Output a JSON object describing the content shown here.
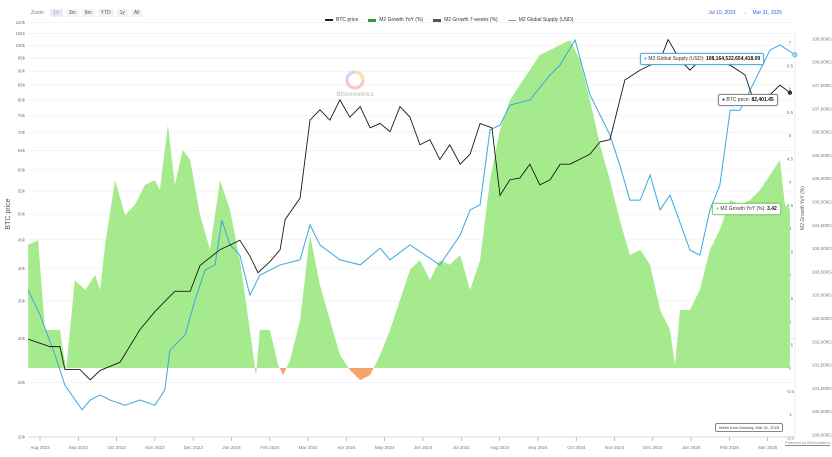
{
  "toolbar": {
    "zoom_label": "Zoom",
    "buttons": [
      "1m",
      "3m",
      "6m",
      "YTD",
      "1y",
      "All"
    ]
  },
  "range": {
    "from": "Jul 10, 2023",
    "arrow": "→",
    "to": "Mar 31, 2025"
  },
  "legend": [
    {
      "label": "BTC price",
      "color": "#222222"
    },
    {
      "label": "M2 Growth YoY (%)",
      "color": "#2e9e2e"
    },
    {
      "label": "M2 Growth 7-weeks (%)",
      "color": "#555555"
    },
    {
      "label": "M2 Global Supply (USD)",
      "color": "#4db3e6"
    }
  ],
  "watermark": "BGeometrics",
  "tooltips": {
    "m2_supply": {
      "label": "M2 Global Supply (USD):",
      "value": "108,164,522,654,418.09"
    },
    "btc": {
      "label": "BTC price:",
      "value": "82,401.45"
    },
    "growth": {
      "label": "M2 Growth YoY (%):",
      "value": "3.42"
    }
  },
  "powered": "Powered by BGeometrics",
  "week_tooltip": "Week from Monday, Mar 31, 2025",
  "colors": {
    "btc": "#1a1a1a",
    "m2": "#3aa8e0",
    "growth_pos": "#a6ea8e",
    "growth_neg": "#f4a36c"
  },
  "chart_data": {
    "type": "line",
    "title": "",
    "x_unit": "months since Aug 2023",
    "xticks": [
      "Aug 2023",
      "Sep 2023",
      "Oct 2023",
      "Nov 2023",
      "Dec 2023",
      "Jan 2024",
      "Feb 2024",
      "Mar 2024",
      "Apr 2024",
      "May 2024",
      "Jun 2024",
      "Jul 2024",
      "Aug 2024",
      "Sep 2024",
      "Oct 2024",
      "Nov 2024",
      "Dec 2024",
      "Jan 2025",
      "Feb 2025",
      "Mar 2025"
    ],
    "y_left": {
      "label": "BTC price",
      "scale": "log",
      "ticks": [
        "110k",
        "105k",
        "100k",
        "95k",
        "90k",
        "85k",
        "80k",
        "75k",
        "70k",
        "65k",
        "60k",
        "55k",
        "50k",
        "45k",
        "40k",
        "35k",
        "30k",
        "25k",
        "20k"
      ],
      "tick_values": [
        110,
        105,
        100,
        95,
        90,
        85,
        80,
        75,
        70,
        65,
        60,
        55,
        50,
        45,
        40,
        35,
        30,
        25,
        20
      ]
    },
    "y_right1": {
      "label": "M2 Growth YoY (%)",
      "ticks": [
        "7",
        "6.5",
        "6",
        "5.5",
        "5",
        "4.5",
        "4",
        "3.5",
        "3",
        "2.5",
        "2",
        "1.5",
        "1",
        "0.5",
        "0",
        "-0.5",
        "-1",
        "-1.5"
      ],
      "tick_values": [
        7,
        6.5,
        6,
        5.5,
        5,
        4.5,
        4,
        3.5,
        3,
        2.5,
        2,
        1.5,
        1,
        0.5,
        0,
        -0.5,
        -1,
        -1.5
      ]
    },
    "y_right2": {
      "label": "M2 Global Supply (USD)",
      "ticks": [
        "108,500G",
        "108,000G",
        "107,500G",
        "107,000G",
        "106,500G",
        "106,000G",
        "105,500G",
        "105,000G",
        "104,500G",
        "104,000G",
        "103,500G",
        "103,000G",
        "102,500G",
        "102,000G",
        "101,500G",
        "101,000G",
        "100,500G",
        "100,000G"
      ],
      "tick_values": [
        108500,
        108000,
        107500,
        107000,
        106500,
        106000,
        105500,
        105000,
        104500,
        104000,
        103500,
        103000,
        102500,
        102000,
        101500,
        101000,
        100500,
        100000
      ]
    },
    "series": [
      {
        "name": "M2 Growth YoY (%)",
        "type": "area",
        "points": [
          [
            -0.31,
            2.65
          ],
          [
            -0.05,
            2.75
          ],
          [
            0.13,
            0.82
          ],
          [
            0.52,
            0.82
          ],
          [
            0.68,
            -0.04
          ],
          [
            0.91,
            1.89
          ],
          [
            1.18,
            1.68
          ],
          [
            1.44,
            2.0
          ],
          [
            1.57,
            1.68
          ],
          [
            1.7,
            2.65
          ],
          [
            1.96,
            4.04
          ],
          [
            2.22,
            3.29
          ],
          [
            2.48,
            3.51
          ],
          [
            2.74,
            3.94
          ],
          [
            3.0,
            4.04
          ],
          [
            3.13,
            3.83
          ],
          [
            3.34,
            5.23
          ],
          [
            3.52,
            3.94
          ],
          [
            3.73,
            4.69
          ],
          [
            3.92,
            4.47
          ],
          [
            4.18,
            3.29
          ],
          [
            4.44,
            2.54
          ],
          [
            4.7,
            4.04
          ],
          [
            4.96,
            3.4
          ],
          [
            5.22,
            2.32
          ],
          [
            5.48,
            0.82
          ],
          [
            5.64,
            -0.15
          ],
          [
            5.74,
            0.82
          ],
          [
            6.0,
            0.82
          ],
          [
            6.22,
            0.06
          ],
          [
            6.35,
            -0.15
          ],
          [
            6.53,
            0.17
          ],
          [
            6.79,
            1.03
          ],
          [
            7.05,
            2.86
          ],
          [
            7.31,
            1.78
          ],
          [
            7.57,
            1.03
          ],
          [
            7.83,
            0.28
          ],
          [
            8.09,
            -0.04
          ],
          [
            8.36,
            -0.26
          ],
          [
            8.62,
            -0.15
          ],
          [
            8.88,
            0.28
          ],
          [
            9.14,
            0.82
          ],
          [
            9.4,
            1.46
          ],
          [
            9.66,
            2.11
          ],
          [
            9.92,
            2.32
          ],
          [
            10.18,
            1.89
          ],
          [
            10.44,
            2.32
          ],
          [
            10.7,
            2.22
          ],
          [
            10.97,
            2.43
          ],
          [
            11.23,
            1.68
          ],
          [
            11.49,
            2.32
          ],
          [
            11.75,
            4.04
          ],
          [
            12.01,
            5.12
          ],
          [
            12.27,
            5.76
          ],
          [
            12.53,
            6.09
          ],
          [
            12.79,
            6.41
          ],
          [
            13.05,
            6.73
          ],
          [
            13.32,
            6.84
          ],
          [
            13.58,
            6.95
          ],
          [
            13.84,
            7.05
          ],
          [
            14.1,
            6.62
          ],
          [
            14.36,
            5.76
          ],
          [
            14.62,
            4.8
          ],
          [
            14.88,
            4.04
          ],
          [
            15.14,
            3.18
          ],
          [
            15.4,
            2.43
          ],
          [
            15.67,
            2.54
          ],
          [
            15.93,
            2.22
          ],
          [
            16.19,
            1.25
          ],
          [
            16.45,
            0.82
          ],
          [
            16.58,
            0.06
          ],
          [
            16.71,
            1.25
          ],
          [
            16.97,
            1.25
          ],
          [
            17.23,
            1.68
          ],
          [
            17.49,
            2.54
          ],
          [
            17.75,
            2.97
          ],
          [
            18.02,
            3.61
          ],
          [
            18.28,
            3.51
          ],
          [
            18.54,
            3.61
          ],
          [
            18.8,
            3.83
          ],
          [
            19.06,
            4.15
          ],
          [
            19.32,
            4.47
          ],
          [
            19.45,
            3.51
          ],
          [
            19.58,
            3.42
          ]
        ]
      },
      {
        "name": "BTC price",
        "unit": "k USD",
        "points": [
          [
            -0.31,
            29.9
          ],
          [
            0.26,
            29.0
          ],
          [
            0.52,
            29.0
          ],
          [
            0.65,
            26.4
          ],
          [
            1.04,
            26.4
          ],
          [
            1.31,
            25.3
          ],
          [
            1.57,
            26.3
          ],
          [
            2.09,
            27.2
          ],
          [
            2.61,
            31.1
          ],
          [
            3.0,
            33.5
          ],
          [
            3.52,
            36.4
          ],
          [
            3.92,
            36.4
          ],
          [
            4.18,
            40.5
          ],
          [
            4.7,
            43.2
          ],
          [
            5.22,
            44.9
          ],
          [
            5.48,
            42.1
          ],
          [
            5.69,
            39.3
          ],
          [
            6.0,
            41.1
          ],
          [
            6.27,
            43.2
          ],
          [
            6.4,
            48.9
          ],
          [
            6.79,
            53.4
          ],
          [
            7.05,
            73.6
          ],
          [
            7.31,
            76.8
          ],
          [
            7.57,
            73.6
          ],
          [
            7.83,
            80.0
          ],
          [
            8.09,
            74.5
          ],
          [
            8.36,
            77.8
          ],
          [
            8.62,
            71.3
          ],
          [
            8.88,
            72.6
          ],
          [
            9.14,
            70.2
          ],
          [
            9.4,
            77.8
          ],
          [
            9.66,
            74.5
          ],
          [
            9.92,
            66.5
          ],
          [
            10.18,
            67.9
          ],
          [
            10.44,
            62.6
          ],
          [
            10.7,
            66.5
          ],
          [
            10.97,
            61.4
          ],
          [
            11.23,
            64.0
          ],
          [
            11.49,
            72.6
          ],
          [
            11.8,
            71.3
          ],
          [
            12.01,
            54.0
          ],
          [
            12.27,
            57.6
          ],
          [
            12.53,
            58.0
          ],
          [
            12.79,
            61.4
          ],
          [
            13.05,
            56.4
          ],
          [
            13.32,
            57.6
          ],
          [
            13.58,
            61.4
          ],
          [
            13.84,
            61.4
          ],
          [
            14.36,
            64.0
          ],
          [
            14.62,
            67.3
          ],
          [
            14.88,
            67.9
          ],
          [
            15.14,
            80.0
          ],
          [
            15.27,
            86.8
          ],
          [
            15.67,
            90.4
          ],
          [
            16.19,
            94.2
          ],
          [
            16.4,
            102.5
          ],
          [
            16.71,
            94.2
          ],
          [
            16.97,
            90.4
          ],
          [
            17.23,
            94.2
          ],
          [
            17.49,
            93.5
          ],
          [
            18.02,
            92.3
          ],
          [
            18.41,
            88.6
          ],
          [
            18.67,
            78.4
          ],
          [
            19.06,
            81.7
          ],
          [
            19.32,
            85.0
          ],
          [
            19.58,
            82.4
          ]
        ]
      },
      {
        "name": "M2 Global Supply (USD)",
        "unit": "G USD",
        "points": [
          [
            -0.31,
            103110
          ],
          [
            0,
            102580
          ],
          [
            0.39,
            101720
          ],
          [
            0.65,
            101070
          ],
          [
            1.1,
            100540
          ],
          [
            1.31,
            100750
          ],
          [
            1.57,
            100860
          ],
          [
            1.83,
            100750
          ],
          [
            2.22,
            100640
          ],
          [
            2.61,
            100750
          ],
          [
            3.0,
            100640
          ],
          [
            3.26,
            100970
          ],
          [
            3.39,
            101820
          ],
          [
            3.79,
            102150
          ],
          [
            4.05,
            102900
          ],
          [
            4.31,
            103540
          ],
          [
            4.57,
            103650
          ],
          [
            4.75,
            104610
          ],
          [
            4.96,
            104080
          ],
          [
            5.22,
            103860
          ],
          [
            5.48,
            103000
          ],
          [
            5.74,
            103430
          ],
          [
            6.27,
            103650
          ],
          [
            6.79,
            103760
          ],
          [
            7.05,
            104510
          ],
          [
            7.31,
            104080
          ],
          [
            7.83,
            103760
          ],
          [
            8.36,
            103650
          ],
          [
            8.88,
            104010
          ],
          [
            9.14,
            103760
          ],
          [
            9.66,
            104080
          ],
          [
            10.44,
            103650
          ],
          [
            10.97,
            104290
          ],
          [
            11.23,
            104830
          ],
          [
            11.49,
            104940
          ],
          [
            11.75,
            106550
          ],
          [
            12.01,
            106650
          ],
          [
            12.27,
            107080
          ],
          [
            12.79,
            107190
          ],
          [
            13.32,
            107730
          ],
          [
            13.58,
            107940
          ],
          [
            13.97,
            108480
          ],
          [
            14.36,
            107300
          ],
          [
            14.88,
            106440
          ],
          [
            15.14,
            105790
          ],
          [
            15.4,
            105040
          ],
          [
            15.67,
            105040
          ],
          [
            15.93,
            105580
          ],
          [
            16.19,
            104830
          ],
          [
            16.45,
            105150
          ],
          [
            16.97,
            103970
          ],
          [
            17.23,
            103860
          ],
          [
            17.49,
            104830
          ],
          [
            17.75,
            105360
          ],
          [
            18.02,
            106970
          ],
          [
            18.28,
            106970
          ],
          [
            18.54,
            107400
          ],
          [
            19.06,
            108260
          ],
          [
            19.32,
            108370
          ],
          [
            19.71,
            108160
          ]
        ]
      }
    ]
  }
}
